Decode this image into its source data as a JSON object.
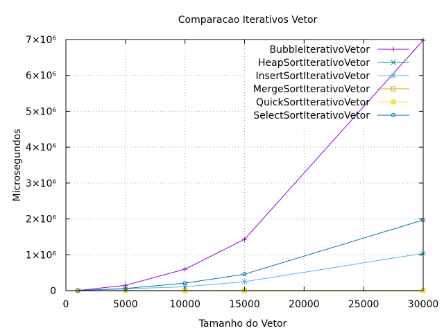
{
  "chart_data": {
    "type": "line",
    "title": "Comparacao Iterativos Vetor",
    "xlabel": "Tamanho do Vetor",
    "ylabel": "Microsegundos",
    "xlim": [
      0,
      30000
    ],
    "ylim": [
      0,
      7000000
    ],
    "x_ticks": [
      {
        "value": 0,
        "label": "0"
      },
      {
        "value": 5000,
        "label": "5000"
      },
      {
        "value": 10000,
        "label": "10000"
      },
      {
        "value": 15000,
        "label": "15000"
      },
      {
        "value": 20000,
        "label": "20000"
      },
      {
        "value": 25000,
        "label": "25000"
      },
      {
        "value": 30000,
        "label": "30000"
      }
    ],
    "y_ticks": [
      {
        "value": 0,
        "label": "0"
      },
      {
        "value": 1000000,
        "label": "1×10⁶"
      },
      {
        "value": 2000000,
        "label": "2×10⁶"
      },
      {
        "value": 3000000,
        "label": "3×10⁶"
      },
      {
        "value": 4000000,
        "label": "4×10⁶"
      },
      {
        "value": 5000000,
        "label": "5×10⁶"
      },
      {
        "value": 6000000,
        "label": "6×10⁶"
      },
      {
        "value": 7000000,
        "label": "7×10⁶"
      }
    ],
    "grid": true,
    "legend_position": "top-right",
    "x": [
      1000,
      5000,
      10000,
      15000,
      30000
    ],
    "series": [
      {
        "name": "BubbleIterativoVetor",
        "color": "#9400d3",
        "marker": "plus",
        "values": [
          5000,
          150000,
          600000,
          1430000,
          6980000
        ]
      },
      {
        "name": "HeapSortIterativoVetor",
        "color": "#009e73",
        "marker": "cross",
        "values": [
          100,
          1000,
          2000,
          3000,
          6000
        ]
      },
      {
        "name": "InsertSortIterativoVetor",
        "color": "#56b4e9",
        "marker": "star",
        "values": [
          2000,
          50000,
          110000,
          250000,
          1040000
        ]
      },
      {
        "name": "MergeSortIterativoVetor",
        "color": "#e69f00",
        "marker": "square-open",
        "values": [
          100,
          1000,
          2000,
          3000,
          6000
        ]
      },
      {
        "name": "QuickSortIterativoVetor",
        "color": "#f0e442",
        "marker": "square-filled",
        "values": [
          100,
          1000,
          2000,
          3000,
          6000
        ]
      },
      {
        "name": "SelectSortIterativoVetor",
        "color": "#0072b2",
        "marker": "circle",
        "values": [
          3000,
          60000,
          210000,
          460000,
          1970000
        ]
      }
    ]
  }
}
